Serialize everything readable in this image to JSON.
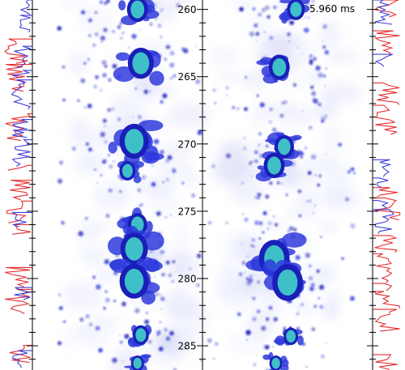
{
  "time_label": "5.960 ms",
  "colors": {
    "haze": "#c9cdf5",
    "blob_outer": "#2f3bdc",
    "blob_mid": "#1a1fb8",
    "blob_inner": "#3fc0c8",
    "trace_red": "#e41a1c",
    "trace_blue": "#2b2bd6",
    "axis": "#000000"
  },
  "chart_data": {
    "type": "heatmap",
    "title": "",
    "xlabel": "",
    "ylabel": "",
    "y_axis": {
      "ticks": [
        260,
        265,
        270,
        275,
        280,
        285
      ],
      "tick_labels": [
        "260",
        "265",
        "270",
        "275",
        "280",
        "285"
      ],
      "range": [
        259.3,
        286.8
      ]
    },
    "panels": [
      {
        "name": "",
        "bright_clusters": [
          {
            "x": 0.62,
            "y": 260.0,
            "size": 1.3
          },
          {
            "x": 0.64,
            "y": 264.0,
            "size": 1.6
          },
          {
            "x": 0.6,
            "y": 269.8,
            "size": 1.8
          },
          {
            "x": 0.56,
            "y": 272.0,
            "size": 1.0
          },
          {
            "x": 0.62,
            "y": 276.0,
            "size": 1.2
          },
          {
            "x": 0.6,
            "y": 277.8,
            "size": 1.7
          },
          {
            "x": 0.6,
            "y": 280.2,
            "size": 1.8
          },
          {
            "x": 0.64,
            "y": 284.2,
            "size": 1.0
          },
          {
            "x": 0.62,
            "y": 286.3,
            "size": 0.8
          }
        ]
      },
      {
        "name": "",
        "bright_clusters": [
          {
            "x": 0.55,
            "y": 260.0,
            "size": 1.1
          },
          {
            "x": 0.45,
            "y": 264.3,
            "size": 1.3
          },
          {
            "x": 0.48,
            "y": 270.2,
            "size": 1.2
          },
          {
            "x": 0.42,
            "y": 271.6,
            "size": 1.3
          },
          {
            "x": 0.42,
            "y": 278.5,
            "size": 1.9
          },
          {
            "x": 0.5,
            "y": 280.3,
            "size": 1.9
          },
          {
            "x": 0.52,
            "y": 284.3,
            "size": 0.9
          },
          {
            "x": 0.43,
            "y": 286.3,
            "size": 0.8
          }
        ]
      }
    ],
    "side_traces": [
      {
        "name": "",
        "color": "red",
        "side": "left"
      },
      {
        "name": "",
        "color": "blue",
        "side": "left"
      },
      {
        "name": "",
        "color": "red",
        "side": "right"
      },
      {
        "name": "",
        "color": "blue",
        "side": "right"
      }
    ]
  }
}
